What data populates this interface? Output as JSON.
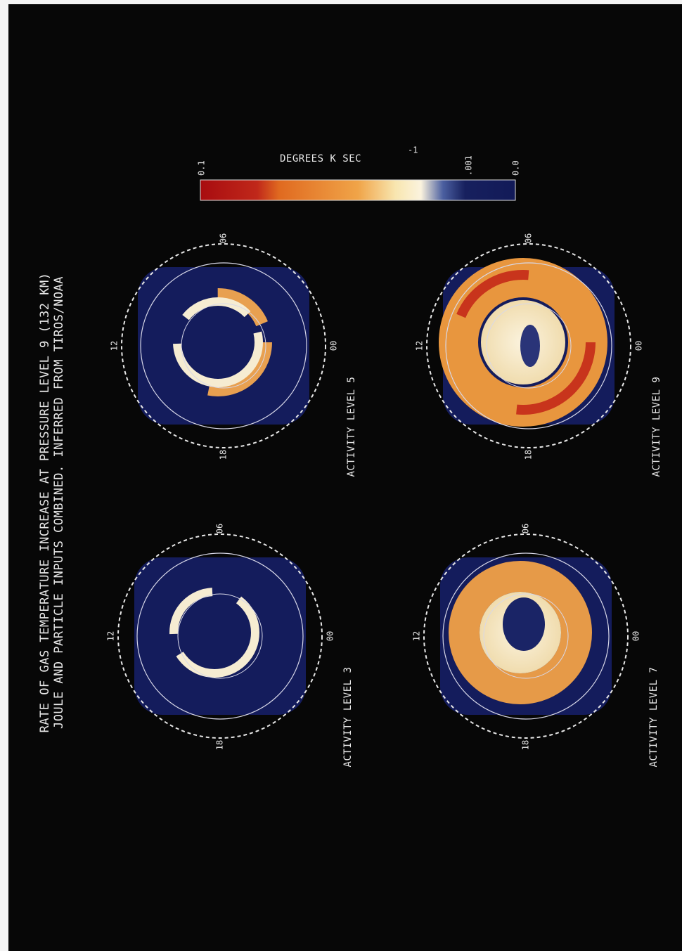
{
  "header": {
    "title_lines": [
      "RATE OF GAS TEMPERATURE INCREASE AT PRESSURE LEVEL 9 (132 KM)",
      "JOULE AND PARTICLE INPUTS COMBINED. INFERRED FROM TIROS/NOAA"
    ]
  },
  "colorbar": {
    "title": "DEGREES K  SEC",
    "exponent": "-1",
    "labels": [
      "0.1",
      ".001",
      "0.0"
    ]
  },
  "panels": [
    {
      "label": "ACTIVITY LEVEL 5",
      "clock": [
        "12",
        "06",
        "18",
        "00"
      ]
    },
    {
      "label": "ACTIVITY LEVEL 3",
      "clock": [
        "12",
        "06",
        "18",
        "00"
      ]
    },
    {
      "label": "ACTIVITY LEVEL 9",
      "clock": [
        "12",
        "06",
        "18",
        "00"
      ]
    },
    {
      "label": "ACTIVITY LEVEL 7",
      "clock": [
        "12",
        "06",
        "18",
        "00"
      ]
    }
  ]
}
